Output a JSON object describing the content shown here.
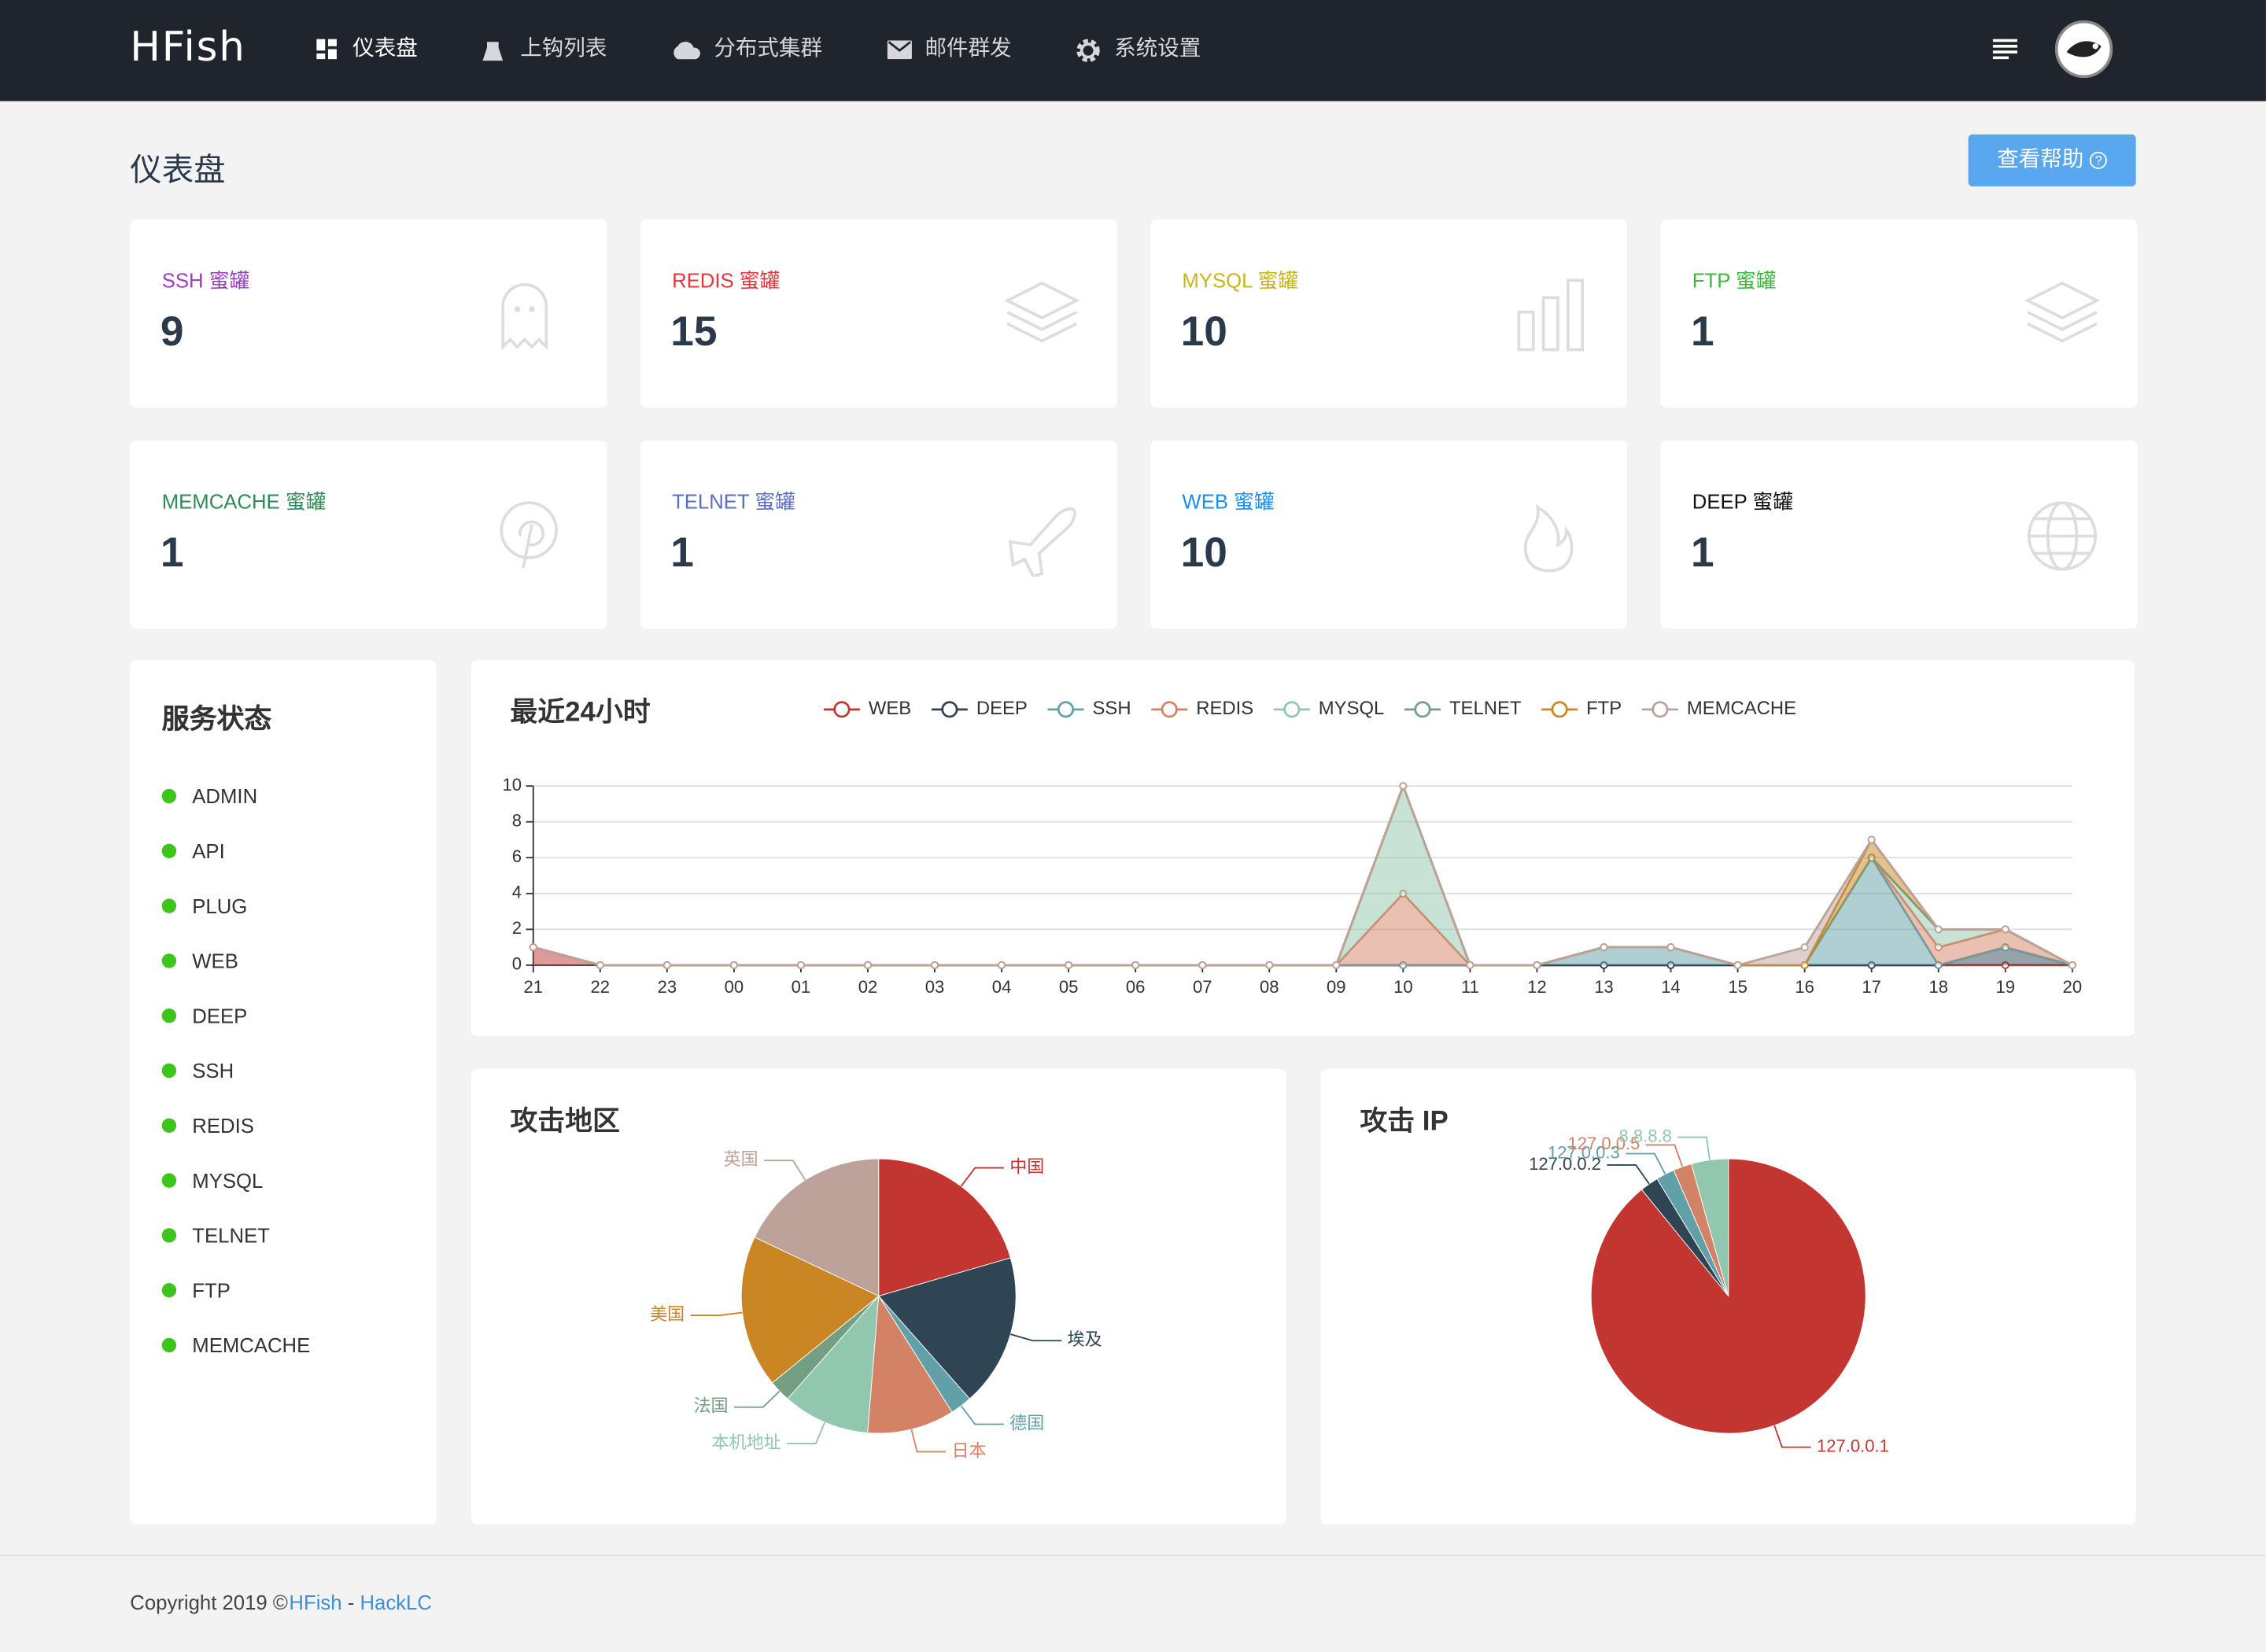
{
  "nav": {
    "brand": "HFish",
    "items": [
      "仪表盘",
      "上钩列表",
      "分布式集群",
      "邮件群发",
      "系统设置"
    ]
  },
  "header": {
    "title": "仪表盘",
    "help_button": "查看帮助"
  },
  "cards": [
    {
      "label": "SSH 蜜罐",
      "value": 9,
      "color": "#9b3fc1"
    },
    {
      "label": "REDIS 蜜罐",
      "value": 15,
      "color": "#e0383e"
    },
    {
      "label": "MYSQL 蜜罐",
      "value": 10,
      "color": "#c8b51a"
    },
    {
      "label": "FTP 蜜罐",
      "value": 1,
      "color": "#3cb83a"
    },
    {
      "label": "MEMCACHE 蜜罐",
      "value": 1,
      "color": "#2e8b57"
    },
    {
      "label": "TELNET 蜜罐",
      "value": 1,
      "color": "#5b6fc2"
    },
    {
      "label": "WEB 蜜罐",
      "value": 10,
      "color": "#1e8ef0"
    },
    {
      "label": "DEEP 蜜罐",
      "value": 1,
      "color": "#111111"
    }
  ],
  "services": {
    "title": "服务状态",
    "items": [
      "ADMIN",
      "API",
      "PLUG",
      "WEB",
      "DEEP",
      "SSH",
      "REDIS",
      "MYSQL",
      "TELNET",
      "FTP",
      "MEMCACHE"
    ]
  },
  "chart_data": [
    {
      "type": "line",
      "title": "最近24小时",
      "stacked": true,
      "area": true,
      "grid": true,
      "categories": [
        "21",
        "22",
        "23",
        "00",
        "01",
        "02",
        "03",
        "04",
        "05",
        "06",
        "07",
        "08",
        "09",
        "10",
        "11",
        "12",
        "13",
        "14",
        "15",
        "16",
        "17",
        "18",
        "19",
        "20"
      ],
      "ylim": [
        0,
        10
      ],
      "yticks": [
        0,
        2,
        4,
        6,
        8,
        10
      ],
      "series": [
        {
          "name": "WEB",
          "color": "#c23531",
          "values": [
            1,
            0,
            0,
            0,
            0,
            0,
            0,
            0,
            0,
            0,
            0,
            0,
            0,
            0,
            0,
            0,
            0,
            0,
            0,
            0,
            0,
            0,
            0,
            0
          ]
        },
        {
          "name": "DEEP",
          "color": "#2f4554",
          "values": [
            0,
            0,
            0,
            0,
            0,
            0,
            0,
            0,
            0,
            0,
            0,
            0,
            0,
            0,
            0,
            0,
            0,
            0,
            0,
            0,
            0,
            0,
            1,
            0
          ]
        },
        {
          "name": "SSH",
          "color": "#61a0a8",
          "values": [
            0,
            0,
            0,
            0,
            0,
            0,
            0,
            0,
            0,
            0,
            0,
            0,
            0,
            0,
            0,
            0,
            1,
            1,
            0,
            0,
            6,
            0,
            0,
            0
          ]
        },
        {
          "name": "REDIS",
          "color": "#d48265",
          "values": [
            0,
            0,
            0,
            0,
            0,
            0,
            0,
            0,
            0,
            0,
            0,
            0,
            0,
            4,
            0,
            0,
            0,
            0,
            0,
            0,
            0,
            1,
            1,
            0
          ]
        },
        {
          "name": "MYSQL",
          "color": "#91c7ae",
          "values": [
            0,
            0,
            0,
            0,
            0,
            0,
            0,
            0,
            0,
            0,
            0,
            0,
            0,
            6,
            0,
            0,
            0,
            0,
            0,
            0,
            0,
            1,
            0,
            0
          ]
        },
        {
          "name": "TELNET",
          "color": "#749f83",
          "values": [
            0,
            0,
            0,
            0,
            0,
            0,
            0,
            0,
            0,
            0,
            0,
            0,
            0,
            0,
            0,
            0,
            0,
            0,
            0,
            0,
            0,
            0,
            0,
            0
          ]
        },
        {
          "name": "FTP",
          "color": "#ca8622",
          "values": [
            0,
            0,
            0,
            0,
            0,
            0,
            0,
            0,
            0,
            0,
            0,
            0,
            0,
            0,
            0,
            0,
            0,
            0,
            0,
            0,
            1,
            0,
            0,
            0
          ]
        },
        {
          "name": "MEMCACHE",
          "color": "#bda29a",
          "values": [
            0,
            0,
            0,
            0,
            0,
            0,
            0,
            0,
            0,
            0,
            0,
            0,
            0,
            0,
            0,
            0,
            0,
            0,
            0,
            1,
            0,
            0,
            0,
            0
          ]
        }
      ]
    },
    {
      "type": "pie",
      "title": "攻击地区",
      "categories": [
        "中国",
        "埃及",
        "德国",
        "日本",
        "本机地址",
        "法国",
        "美国",
        "英国"
      ],
      "values": [
        8,
        7,
        1,
        4,
        4,
        1,
        7,
        7
      ],
      "colors": [
        "#c23531",
        "#2f4554",
        "#61a0a8",
        "#d48265",
        "#91c7ae",
        "#749f83",
        "#ca8622",
        "#bda29a"
      ]
    },
    {
      "type": "pie",
      "title": "攻击 IP",
      "categories": [
        "127.0.0.1",
        "127.0.0.2",
        "127.0.0.3",
        "127.0.0.5",
        "8.8.8.8"
      ],
      "values": [
        41,
        1,
        1,
        1,
        2
      ],
      "colors": [
        "#c23531",
        "#2f4554",
        "#61a0a8",
        "#d48265",
        "#91c7ae"
      ]
    }
  ],
  "footer": {
    "copyright": "Copyright 2019 ©",
    "brand": "HFish",
    "separator": "-",
    "author": "HackLC"
  }
}
